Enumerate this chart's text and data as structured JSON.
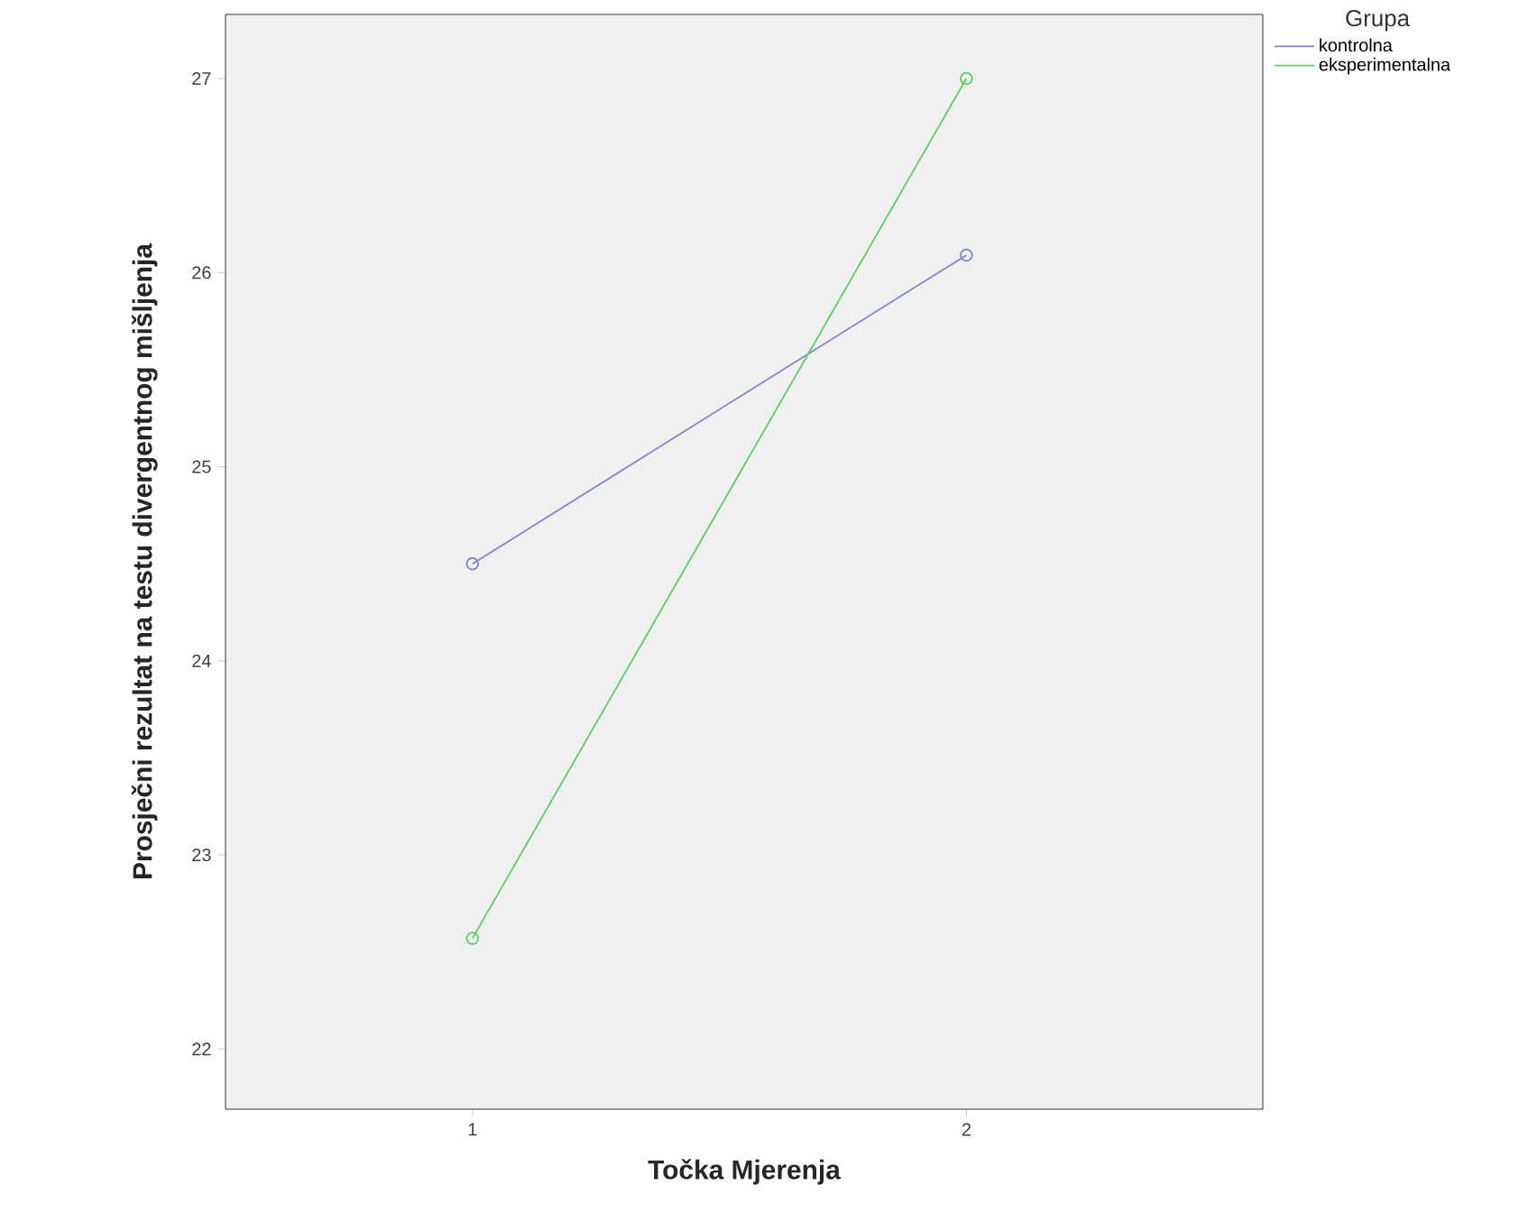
{
  "chart_data": {
    "type": "line",
    "xlabel": "Točka Mjerenja",
    "ylabel": "Prosječni rezultat na testu divergentnog mišljenja",
    "legend_title": "Grupa",
    "x": [
      1,
      2
    ],
    "series": [
      {
        "name": "kontrolna",
        "color": "#7a86c8",
        "values": [
          24.5,
          26.09
        ]
      },
      {
        "name": "eksperimentalna",
        "color": "#5ccc66",
        "values": [
          22.57,
          27.0
        ]
      }
    ],
    "xlim": [
      0.5,
      2.6
    ],
    "ylim": [
      21.69,
      27.33
    ],
    "xticks": [
      1,
      2
    ],
    "yticks": [
      22,
      23,
      24,
      25,
      26,
      27
    ],
    "legend": "top right",
    "marker": "circle",
    "line_style": "solid",
    "grid": false
  }
}
